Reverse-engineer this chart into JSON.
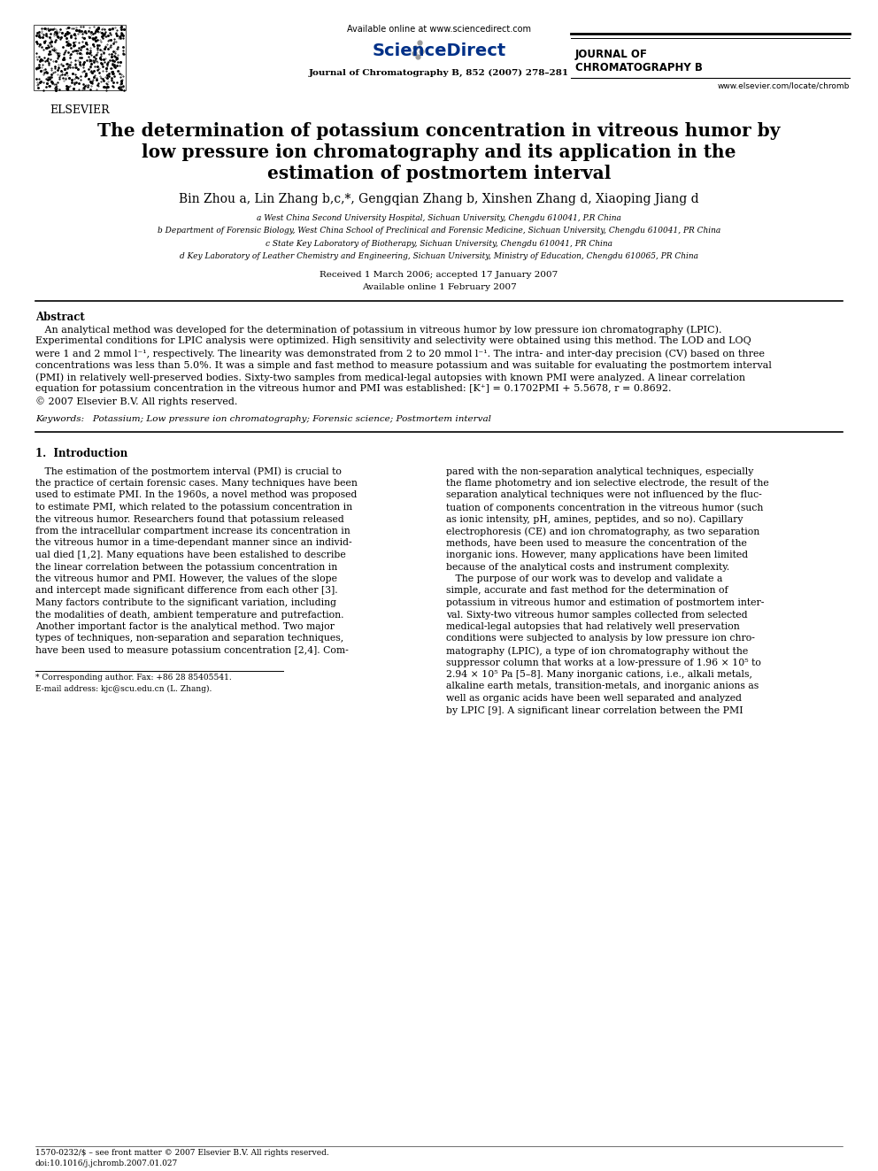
{
  "page_bg": "#ffffff",
  "header": {
    "available_online": "Available online at www.sciencedirect.com",
    "journal_name_center": "Journal of Chromatography B, 852 (2007) 278–281",
    "journal_name_right_line1": "JOURNAL OF",
    "journal_name_right_line2": "CHROMATOGRAPHY B",
    "website": "www.elsevier.com/locate/chromb",
    "elsevier_text": "ELSEVIER"
  },
  "title_line1": "The determination of potassium concentration in vitreous humor by",
  "title_line2": "low pressure ion chromatography and its application in the",
  "title_line3": "estimation of postmortem interval",
  "authors": "Bin Zhou a, Lin Zhang b,c,*, Gengqian Zhang b, Xinshen Zhang d, Xiaoping Jiang d",
  "affiliations": [
    "a West China Second University Hospital, Sichuan University, Chengdu 610041, P.R China",
    "b Department of Forensic Biology, West China School of Preclinical and Forensic Medicine, Sichuan University, Chengdu 610041, PR China",
    "c State Key Laboratory of Biotherapy, Sichuan University, Chengdu 610041, PR China",
    "d Key Laboratory of Leather Chemistry and Engineering, Sichuan University, Ministry of Education, Chengdu 610065, PR China"
  ],
  "received": "Received 1 March 2006; accepted 17 January 2007",
  "available": "Available online 1 February 2007",
  "abstract_title": "Abstract",
  "abstract_lines": [
    "   An analytical method was developed for the determination of potassium in vitreous humor by low pressure ion chromatography (LPIC).",
    "Experimental conditions for LPIC analysis were optimized. High sensitivity and selectivity were obtained using this method. The LOD and LOQ",
    "were 1 and 2 mmol l⁻¹, respectively. The linearity was demonstrated from 2 to 20 mmol l⁻¹. The intra- and inter-day precision (CV) based on three",
    "concentrations was less than 5.0%. It was a simple and fast method to measure potassium and was suitable for evaluating the postmortem interval",
    "(PMI) in relatively well-preserved bodies. Sixty-two samples from medical-legal autopsies with known PMI were analyzed. A linear correlation",
    "equation for potassium concentration in the vitreous humor and PMI was established: [K⁺] = 0.1702PMI + 5.5678, r = 0.8692.",
    "© 2007 Elsevier B.V. All rights reserved."
  ],
  "keywords": "Keywords:   Potassium; Low pressure ion chromatography; Forensic science; Postmortem interval",
  "section1_title": "1.  Introduction",
  "col1_lines": [
    "   The estimation of the postmortem interval (PMI) is crucial to",
    "the practice of certain forensic cases. Many techniques have been",
    "used to estimate PMI. In the 1960s, a novel method was proposed",
    "to estimate PMI, which related to the potassium concentration in",
    "the vitreous humor. Researchers found that potassium released",
    "from the intracellular compartment increase its concentration in",
    "the vitreous humor in a time-dependant manner since an individ-",
    "ual died [1,2]. Many equations have been estalished to describe",
    "the linear correlation between the potassium concentration in",
    "the vitreous humor and PMI. However, the values of the slope",
    "and intercept made significant difference from each other [3].",
    "Many factors contribute to the significant variation, including",
    "the modalities of death, ambient temperature and putrefaction.",
    "Another important factor is the analytical method. Two major",
    "types of techniques, non-separation and separation techniques,",
    "have been used to measure potassium concentration [2,4]. Com-"
  ],
  "col2_lines": [
    "pared with the non-separation analytical techniques, especially",
    "the flame photometry and ion selective electrode, the result of the",
    "separation analytical techniques were not influenced by the fluc-",
    "tuation of components concentration in the vitreous humor (such",
    "as ionic intensity, pH, amines, peptides, and so no). Capillary",
    "electrophoresis (CE) and ion chromatography, as two separation",
    "methods, have been used to measure the concentration of the",
    "inorganic ions. However, many applications have been limited",
    "because of the analytical costs and instrument complexity.",
    "   The purpose of our work was to develop and validate a",
    "simple, accurate and fast method for the determination of",
    "potassium in vitreous humor and estimation of postmortem inter-",
    "val. Sixty-two vitreous humor samples collected from selected",
    "medical-legal autopsies that had relatively well preservation",
    "conditions were subjected to analysis by low pressure ion chro-",
    "matography (LPIC), a type of ion chromatography without the",
    "suppressor column that works at a low-pressure of 1.96 × 10⁵ to",
    "2.94 × 10⁵ Pa [5–8]. Many inorganic cations, i.e., alkali metals,",
    "alkaline earth metals, transition-metals, and inorganic anions as",
    "well as organic acids have been well separated and analyzed",
    "by LPIC [9]. A significant linear correlation between the PMI"
  ],
  "footnote_star": "* Corresponding author. Fax: +86 28 85405541.",
  "footnote_email": "E-mail address: kjc@scu.edu.cn (L. Zhang).",
  "footnote_issn": "1570-0232/$ – see front matter © 2007 Elsevier B.V. All rights reserved.",
  "footnote_doi": "doi:10.1016/j.jchromb.2007.01.027"
}
